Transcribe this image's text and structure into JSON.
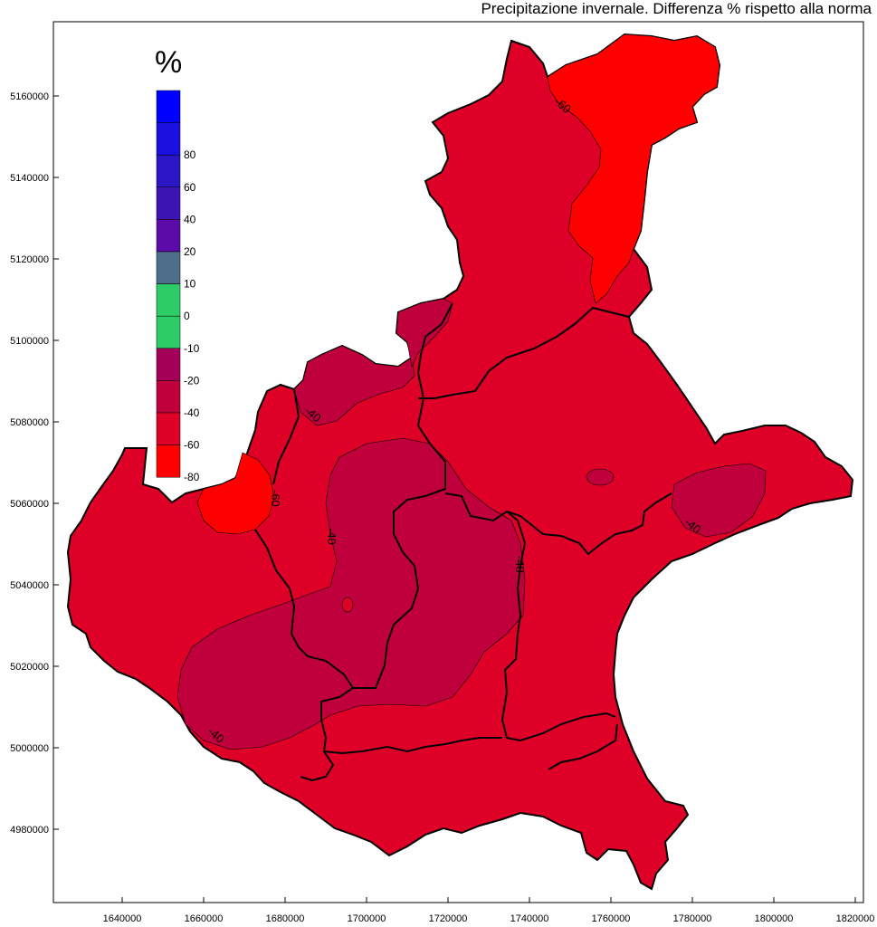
{
  "title": "Precipitazione invernale. Differenza % rispetto alla norma",
  "colors": {
    "fill_-40_-20": "#c0003c",
    "fill_-60_-40": "#de0026",
    "fill_-80_-60": "#ff0000",
    "border": "#000000"
  },
  "axes": {
    "x_ticks": [
      "1640000",
      "1660000",
      "1680000",
      "1700000",
      "1720000",
      "1740000",
      "1760000",
      "1780000",
      "1800000",
      "1820000"
    ],
    "y_ticks": [
      "5160000",
      "5140000",
      "5120000",
      "5100000",
      "5080000",
      "5060000",
      "5040000",
      "5020000",
      "5000000",
      "4980000"
    ]
  },
  "legend": {
    "unit": "%",
    "classes": [
      {
        "color": "#0000ff",
        "label": ""
      },
      {
        "color": "#1a10e0",
        "label": "80"
      },
      {
        "color": "#2a16c4",
        "label": "60"
      },
      {
        "color": "#3c14b4",
        "label": "40"
      },
      {
        "color": "#5c0aa8",
        "label": "20"
      },
      {
        "color": "#4e6e8a",
        "label": "10"
      },
      {
        "color": "#2ecc66",
        "label": "0"
      },
      {
        "color": "#2ecc66",
        "label": "-10"
      },
      {
        "color": "#a4005a",
        "label": "-20"
      },
      {
        "color": "#c0003c",
        "label": "-40"
      },
      {
        "color": "#de0026",
        "label": "-60"
      },
      {
        "color": "#ff0000",
        "label": "-80"
      }
    ]
  },
  "contour_labels": [
    {
      "text": "-60",
      "region": "north"
    },
    {
      "text": "-40",
      "region": "west-upper"
    },
    {
      "text": "-60",
      "region": "west"
    },
    {
      "text": "-40",
      "region": "center"
    },
    {
      "text": "-40",
      "region": "center-east"
    },
    {
      "text": "-40",
      "region": "east"
    },
    {
      "text": "-40",
      "region": "south-west"
    }
  ]
}
